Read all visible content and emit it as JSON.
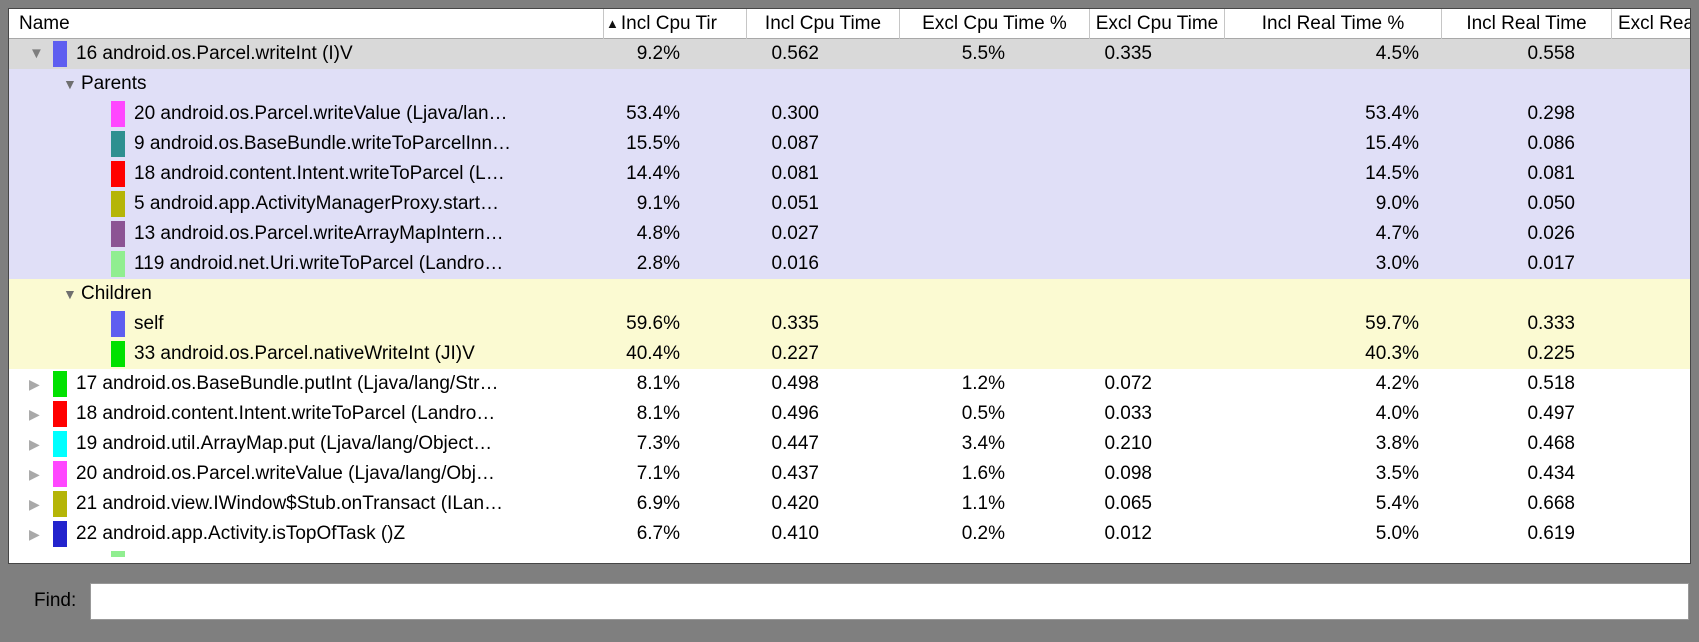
{
  "icons": {
    "expanded": "▼",
    "collapsed": "▶"
  },
  "colors": {
    "frame_gray": "#7f7f7f",
    "selected_row_bg": "#d9d9d9",
    "parents_section_bg": "#e0dff7",
    "children_section_bg": "#fbfad2"
  },
  "table": {
    "sort_indicator": "▲",
    "columns": [
      {
        "label": "Name"
      },
      {
        "label": "Incl Cpu Tir",
        "sorted": "ascending"
      },
      {
        "label": "Incl Cpu Time"
      },
      {
        "label": "Excl Cpu Time %"
      },
      {
        "label": "Excl Cpu Time"
      },
      {
        "label": "Incl Real Time %"
      },
      {
        "label": "Incl Real Time"
      },
      {
        "label": "Excl Real"
      }
    ],
    "rows": [
      {
        "kind": "method",
        "level": 0,
        "disclosure": "expanded",
        "chip": "#5e5ef0",
        "bg": "selected",
        "name": "16 android.os.Parcel.writeInt (I)V",
        "values": [
          "9.2%",
          "0.562",
          "5.5%",
          "0.335",
          "4.5%",
          "0.558",
          ""
        ]
      },
      {
        "kind": "section",
        "disclosure": "expanded",
        "bg": "parents",
        "name": "Parents",
        "values": [
          "",
          "",
          "",
          "",
          "",
          "",
          ""
        ]
      },
      {
        "kind": "method",
        "level": 1,
        "chip": "#ff47ff",
        "bg": "parents",
        "name": "20 android.os.Parcel.writeValue (Ljava/lan…",
        "values": [
          "53.4%",
          "0.300",
          "",
          "",
          "53.4%",
          "0.298",
          ""
        ]
      },
      {
        "kind": "method",
        "level": 1,
        "chip": "#2e9090",
        "bg": "parents",
        "name": "9 android.os.BaseBundle.writeToParcelInn…",
        "values": [
          "15.5%",
          "0.087",
          "",
          "",
          "15.4%",
          "0.086",
          ""
        ]
      },
      {
        "kind": "method",
        "level": 1,
        "chip": "#ff0000",
        "bg": "parents",
        "name": "18 android.content.Intent.writeToParcel (L…",
        "values": [
          "14.4%",
          "0.081",
          "",
          "",
          "14.5%",
          "0.081",
          ""
        ]
      },
      {
        "kind": "method",
        "level": 1,
        "chip": "#b5b507",
        "bg": "parents",
        "name": "5 android.app.ActivityManagerProxy.start…",
        "values": [
          "9.1%",
          "0.051",
          "",
          "",
          "9.0%",
          "0.050",
          ""
        ]
      },
      {
        "kind": "method",
        "level": 1,
        "chip": "#8c5494",
        "bg": "parents",
        "name": "13 android.os.Parcel.writeArrayMapIntern…",
        "values": [
          "4.8%",
          "0.027",
          "",
          "",
          "4.7%",
          "0.026",
          ""
        ]
      },
      {
        "kind": "method",
        "level": 1,
        "chip": "#90ee90",
        "bg": "parents",
        "name": "119 android.net.Uri.writeToParcel (Landro…",
        "values": [
          "2.8%",
          "0.016",
          "",
          "",
          "3.0%",
          "0.017",
          ""
        ]
      },
      {
        "kind": "section",
        "disclosure": "expanded",
        "bg": "children",
        "name": "Children",
        "values": [
          "",
          "",
          "",
          "",
          "",
          "",
          ""
        ]
      },
      {
        "kind": "method",
        "level": 1,
        "chip": "#5e5ef0",
        "bg": "children",
        "name": "self",
        "values": [
          "59.6%",
          "0.335",
          "",
          "",
          "59.7%",
          "0.333",
          ""
        ]
      },
      {
        "kind": "method",
        "level": 1,
        "chip": "#00e100",
        "bg": "children",
        "name": "33 android.os.Parcel.nativeWriteInt (JI)V",
        "values": [
          "40.4%",
          "0.227",
          "",
          "",
          "40.3%",
          "0.225",
          ""
        ]
      },
      {
        "kind": "method",
        "level": 0,
        "disclosure": "collapsed",
        "chip": "#00e100",
        "bg": "white",
        "name": "17 android.os.BaseBundle.putInt (Ljava/lang/Str…",
        "values": [
          "8.1%",
          "0.498",
          "1.2%",
          "0.072",
          "4.2%",
          "0.518",
          ""
        ]
      },
      {
        "kind": "method",
        "level": 0,
        "disclosure": "collapsed",
        "chip": "#ff0000",
        "bg": "white",
        "name": "18 android.content.Intent.writeToParcel (Landro…",
        "values": [
          "8.1%",
          "0.496",
          "0.5%",
          "0.033",
          "4.0%",
          "0.497",
          ""
        ]
      },
      {
        "kind": "method",
        "level": 0,
        "disclosure": "collapsed",
        "chip": "#00ffff",
        "bg": "white",
        "name": "19 android.util.ArrayMap.put (Ljava/lang/Object…",
        "values": [
          "7.3%",
          "0.447",
          "3.4%",
          "0.210",
          "3.8%",
          "0.468",
          ""
        ]
      },
      {
        "kind": "method",
        "level": 0,
        "disclosure": "collapsed",
        "chip": "#ff47ff",
        "bg": "white",
        "name": "20 android.os.Parcel.writeValue (Ljava/lang/Obj…",
        "values": [
          "7.1%",
          "0.437",
          "1.6%",
          "0.098",
          "3.5%",
          "0.434",
          ""
        ]
      },
      {
        "kind": "method",
        "level": 0,
        "disclosure": "collapsed",
        "chip": "#b5b507",
        "bg": "white",
        "name": "21 android.view.IWindow$Stub.onTransact (ILan…",
        "values": [
          "6.9%",
          "0.420",
          "1.1%",
          "0.065",
          "5.4%",
          "0.668",
          ""
        ]
      },
      {
        "kind": "method",
        "level": 0,
        "disclosure": "collapsed",
        "chip": "#2323cd",
        "bg": "white",
        "name": "22 android.app.Activity.isTopOfTask ()Z",
        "values": [
          "6.7%",
          "0.410",
          "0.2%",
          "0.012",
          "5.0%",
          "0.619",
          ""
        ]
      },
      {
        "kind": "method",
        "level": 1,
        "chip": "#90ee90",
        "bg": "white",
        "partial": true,
        "name": "",
        "values": [
          "",
          "",
          "",
          "",
          "",
          "",
          ""
        ]
      }
    ]
  },
  "find": {
    "label": "Find:",
    "value": ""
  }
}
